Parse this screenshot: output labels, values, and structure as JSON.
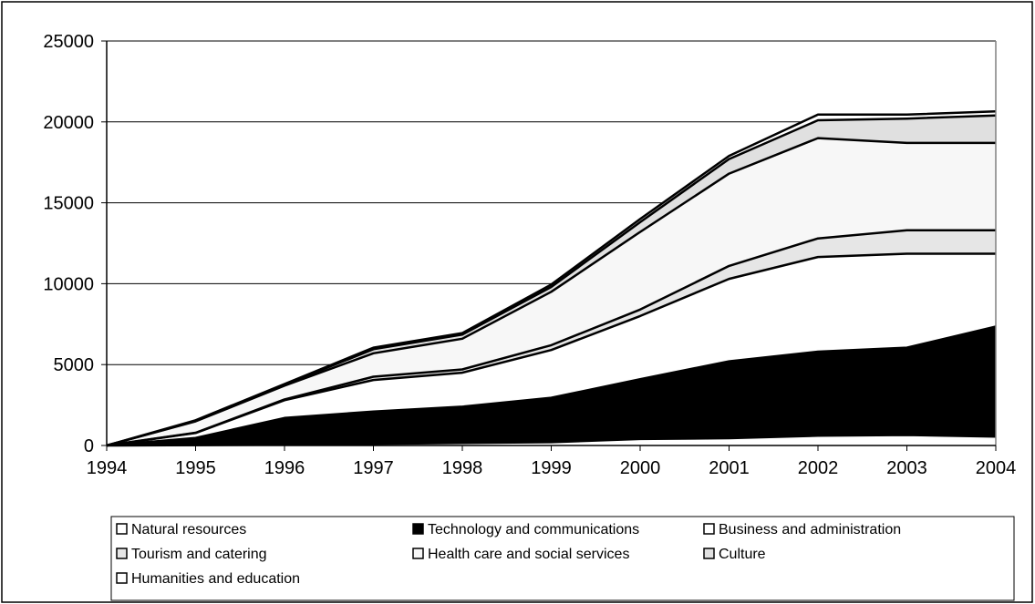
{
  "chart_data": {
    "type": "area",
    "stacked": true,
    "title": "",
    "xlabel": "",
    "ylabel": "",
    "x": [
      "1994",
      "1995",
      "1996",
      "1997",
      "1998",
      "1999",
      "2000",
      "2001",
      "2002",
      "2003",
      "2004"
    ],
    "ylim": [
      0,
      25000
    ],
    "yticks": [
      "0",
      "5000",
      "10000",
      "15000",
      "20000",
      "25000"
    ],
    "grid": "horizontal",
    "legend_position": "bottom",
    "series": [
      {
        "name": "Natural resources",
        "color": "#ffffff",
        "values": [
          0,
          20,
          50,
          100,
          150,
          200,
          400,
          450,
          600,
          650,
          550
        ]
      },
      {
        "name": "Technology and communications",
        "color": "#000000",
        "values": [
          0,
          450,
          1650,
          2000,
          2250,
          2750,
          3700,
          4750,
          5200,
          5400,
          6800
        ]
      },
      {
        "name": "Business and administration",
        "color": "#ffffff",
        "values": [
          0,
          300,
          1100,
          1950,
          2100,
          2950,
          3900,
          5100,
          5850,
          5800,
          4500
        ]
      },
      {
        "name": "Tourism and catering",
        "color": "#e6e6e6",
        "values": [
          0,
          20,
          50,
          200,
          200,
          300,
          400,
          800,
          1150,
          1450,
          1450
        ]
      },
      {
        "name": "Health care and social services",
        "color": "#f7f7f7",
        "values": [
          0,
          700,
          850,
          1450,
          1900,
          3300,
          4800,
          5700,
          6200,
          5400,
          5400
        ]
      },
      {
        "name": "Culture",
        "color": "#e0e0e0",
        "values": [
          0,
          20,
          50,
          250,
          250,
          300,
          600,
          900,
          1100,
          1500,
          1700
        ]
      },
      {
        "name": "Humanities and education",
        "color": "#ffffff",
        "values": [
          0,
          50,
          50,
          100,
          100,
          150,
          200,
          200,
          350,
          250,
          250
        ]
      }
    ]
  }
}
